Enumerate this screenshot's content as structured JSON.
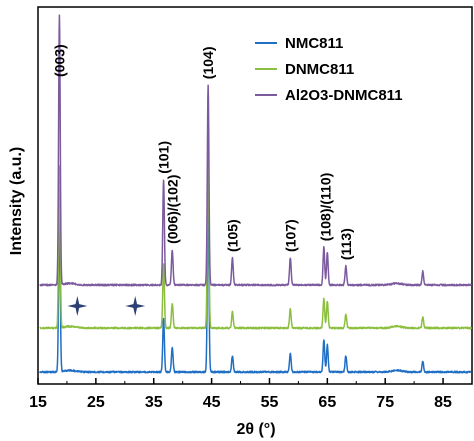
{
  "chart_data": {
    "type": "line",
    "xlabel": "2θ (°)",
    "ylabel": "Intensity (a.u.)",
    "xlim": [
      15,
      90
    ],
    "x_ticks": [
      15,
      25,
      35,
      45,
      55,
      65,
      75,
      85
    ],
    "y_ticks_shown": false,
    "grid": false,
    "legend_placement": "top-right",
    "series": [
      {
        "name": "NMC811",
        "color": "#1f6fc5",
        "peaks": [
          {
            "x": 18.7,
            "height": 0.6
          },
          {
            "x": 36.7,
            "height": 0.2
          },
          {
            "x": 38.2,
            "height": 0.09
          },
          {
            "x": 44.4,
            "height": 0.62
          },
          {
            "x": 48.6,
            "height": 0.06
          },
          {
            "x": 58.6,
            "height": 0.07
          },
          {
            "x": 64.4,
            "height": 0.12
          },
          {
            "x": 65.0,
            "height": 0.1
          },
          {
            "x": 68.2,
            "height": 0.06
          },
          {
            "x": 81.5,
            "height": 0.04
          }
        ]
      },
      {
        "name": "DNMC811",
        "color": "#8cbf3f",
        "peaks": [
          {
            "x": 18.7,
            "height": 0.6
          },
          {
            "x": 36.7,
            "height": 0.24
          },
          {
            "x": 38.2,
            "height": 0.09
          },
          {
            "x": 44.4,
            "height": 0.65
          },
          {
            "x": 48.6,
            "height": 0.06
          },
          {
            "x": 58.6,
            "height": 0.07
          },
          {
            "x": 64.4,
            "height": 0.11
          },
          {
            "x": 65.0,
            "height": 0.1
          },
          {
            "x": 68.2,
            "height": 0.05
          },
          {
            "x": 81.5,
            "height": 0.04
          }
        ]
      },
      {
        "name": "Al2O3-DNMC811",
        "color": "#7b5a9e",
        "peaks": [
          {
            "x": 18.7,
            "height": 1.0
          },
          {
            "x": 36.7,
            "height": 0.39
          },
          {
            "x": 38.2,
            "height": 0.13
          },
          {
            "x": 44.4,
            "height": 0.74
          },
          {
            "x": 48.6,
            "height": 0.1
          },
          {
            "x": 58.6,
            "height": 0.1
          },
          {
            "x": 64.4,
            "height": 0.14
          },
          {
            "x": 65.0,
            "height": 0.12
          },
          {
            "x": 68.2,
            "height": 0.07
          },
          {
            "x": 81.5,
            "height": 0.05
          }
        ]
      }
    ],
    "annotations": [
      {
        "text": "(003)",
        "x": 18.7
      },
      {
        "text": "(101)",
        "x": 36.7
      },
      {
        "text": "(006)/(102)",
        "x": 38.2
      },
      {
        "text": "(104)",
        "x": 44.4
      },
      {
        "text": "(105)",
        "x": 48.6
      },
      {
        "text": "(107)",
        "x": 58.6
      },
      {
        "text": "(108)/(110)",
        "x": 64.7
      },
      {
        "text": "(113)",
        "x": 68.2
      }
    ],
    "markers": [
      {
        "symbol": "star",
        "x": 21.8,
        "series": "DNMC811",
        "color": "#2b3f73"
      },
      {
        "symbol": "star",
        "x": 31.8,
        "series": "DNMC811",
        "color": "#2b3f73"
      }
    ]
  }
}
